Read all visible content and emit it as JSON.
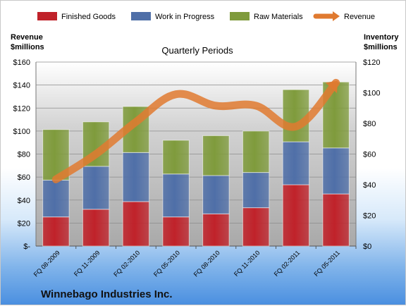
{
  "chart_data": {
    "type": "bar",
    "subtitle": "Quarterly Periods",
    "footer": "Winnebago Industries Inc.",
    "categories": [
      "FQ 08-2009",
      "FQ 11-2009",
      "FQ 02-2010",
      "FQ 05-2010",
      "FQ 08-2010",
      "FQ 11-2010",
      "FQ 02-2011",
      "FQ 05-2011"
    ],
    "stacked": true,
    "series": [
      {
        "name": "Finished Goods",
        "axis": "right",
        "color": "#c0222a",
        "values": [
          19,
          24,
          29,
          19,
          21,
          25,
          40,
          34
        ]
      },
      {
        "name": "Work in Progress",
        "axis": "right",
        "color": "#4f6fa8",
        "values": [
          24,
          28,
          32,
          28,
          25,
          23,
          28,
          30
        ]
      },
      {
        "name": "Raw Materials",
        "axis": "right",
        "color": "#7f9b3c",
        "values": [
          33,
          29,
          30,
          22,
          26,
          27,
          34,
          43
        ]
      },
      {
        "name": "Revenue",
        "type": "line",
        "axis": "left",
        "color": "#e07a30",
        "values": [
          58,
          80,
          108,
          132,
          122,
          122,
          104,
          142
        ]
      }
    ],
    "y_left": {
      "label_line1": "Revenue",
      "label_line2": "$millions",
      "ylim": [
        0,
        160
      ],
      "ticks": [
        "$-",
        "$20",
        "$40",
        "$60",
        "$80",
        "$100",
        "$120",
        "$140",
        "$160"
      ]
    },
    "y_right": {
      "label_line1": "Inventory",
      "label_line2": "$millions",
      "ylim": [
        0,
        120
      ],
      "ticks": [
        "$0",
        "$20",
        "$40",
        "$60",
        "$80",
        "$100",
        "$120"
      ]
    },
    "legend_position": "top",
    "grid": true
  }
}
